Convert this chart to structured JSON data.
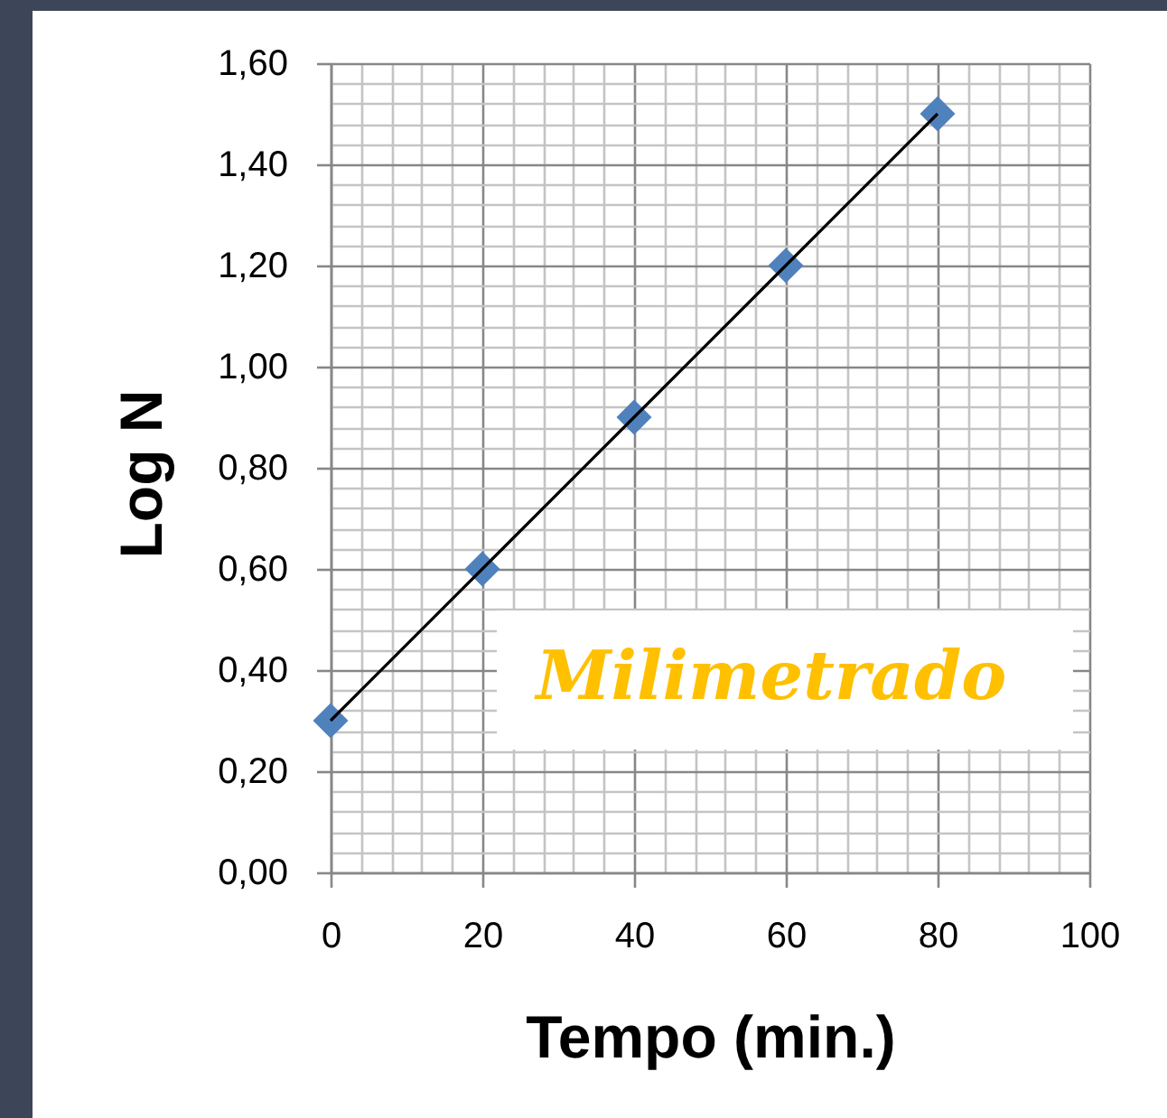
{
  "chart_data": {
    "type": "scatter",
    "xlabel": "Tempo (min.)",
    "ylabel": "Log N",
    "x": [
      0,
      20,
      40,
      60,
      80
    ],
    "series": [
      {
        "color": "#4f81bd",
        "marker": "diamond",
        "values": [
          0.3,
          0.6,
          0.9,
          1.2,
          1.5
        ]
      },
      {
        "type": "line",
        "color": "#000000",
        "values": [
          0.3,
          0.6,
          0.9,
          1.2,
          1.5
        ]
      }
    ],
    "xlim": [
      0,
      100
    ],
    "xticks": [
      0,
      {
        "value": 4,
        "label": null
      },
      {
        "value": 8,
        "label": null
      },
      {
        "value": 12,
        "label": null
      },
      {
        "value": 16,
        "label": null
      },
      20,
      {
        "value": 24,
        "label": null
      },
      {
        "value": 28,
        "label": null
      },
      {
        "value": 32,
        "label": null
      },
      {
        "value": 36,
        "label": null
      },
      40,
      {
        "value": 44,
        "label": null
      },
      {
        "value": 48,
        "label": null
      },
      {
        "value": 52,
        "label": null
      },
      {
        "value": 56,
        "label": null
      },
      60,
      {
        "value": 64,
        "label": null
      },
      {
        "value": 68,
        "label": null
      },
      {
        "value": 72,
        "label": null
      },
      {
        "value": 76,
        "label": null
      },
      80,
      {
        "value": 84,
        "label": null
      },
      {
        "value": 88,
        "label": null
      },
      {
        "value": 92,
        "label": null
      },
      {
        "value": 96,
        "label": null
      },
      100
    ],
    "ylim": [
      0,
      1.6
    ],
    "yticks": [
      {
        "value": 0,
        "label": "0,00"
      },
      {
        "value": 0.04,
        "label": null
      },
      {
        "value": 0.08,
        "label": null
      },
      {
        "value": 0.12,
        "label": null
      },
      {
        "value": 0.16,
        "label": null
      },
      {
        "value": 0.2,
        "label": "0,20"
      },
      {
        "value": 0.24,
        "label": null
      },
      {
        "value": 0.28,
        "label": null
      },
      {
        "value": 0.32,
        "label": null
      },
      {
        "value": 0.36,
        "label": null
      },
      {
        "value": 0.4,
        "label": "0,40"
      },
      {
        "value": 0.44,
        "label": null
      },
      {
        "value": 0.48,
        "label": null
      },
      {
        "value": 0.52,
        "label": null
      },
      {
        "value": 0.56,
        "label": null
      },
      {
        "value": 0.6,
        "label": "0,60"
      },
      {
        "value": 0.64,
        "label": null
      },
      {
        "value": 0.68,
        "label": null
      },
      {
        "value": 0.72,
        "label": null
      },
      {
        "value": 0.76,
        "label": null
      },
      {
        "value": 0.8,
        "label": "0,80"
      },
      {
        "value": 0.84,
        "label": null
      },
      {
        "value": 0.88,
        "label": null
      },
      {
        "value": 0.92,
        "label": null
      },
      {
        "value": 0.96,
        "label": null
      },
      {
        "value": 1,
        "label": "1,00"
      },
      {
        "value": 1.04,
        "label": null
      },
      {
        "value": 1.08,
        "label": null
      },
      {
        "value": 1.12,
        "label": null
      },
      {
        "value": 1.16,
        "label": null
      },
      {
        "value": 1.2,
        "label": "1,20"
      },
      {
        "value": 1.24,
        "label": null
      },
      {
        "value": 1.28,
        "label": null
      },
      {
        "value": 1.32,
        "label": null
      },
      {
        "value": 1.36,
        "label": null
      },
      {
        "value": 1.4,
        "label": "1,40"
      },
      {
        "value": 1.44,
        "label": null
      },
      {
        "value": 1.48,
        "label": null
      },
      {
        "value": 1.52,
        "label": null
      },
      {
        "value": 1.56,
        "label": null
      },
      {
        "value": 1.6,
        "label": "1,60"
      }
    ],
    "grid": true,
    "annotations": [
      "Milimetrado"
    ]
  }
}
